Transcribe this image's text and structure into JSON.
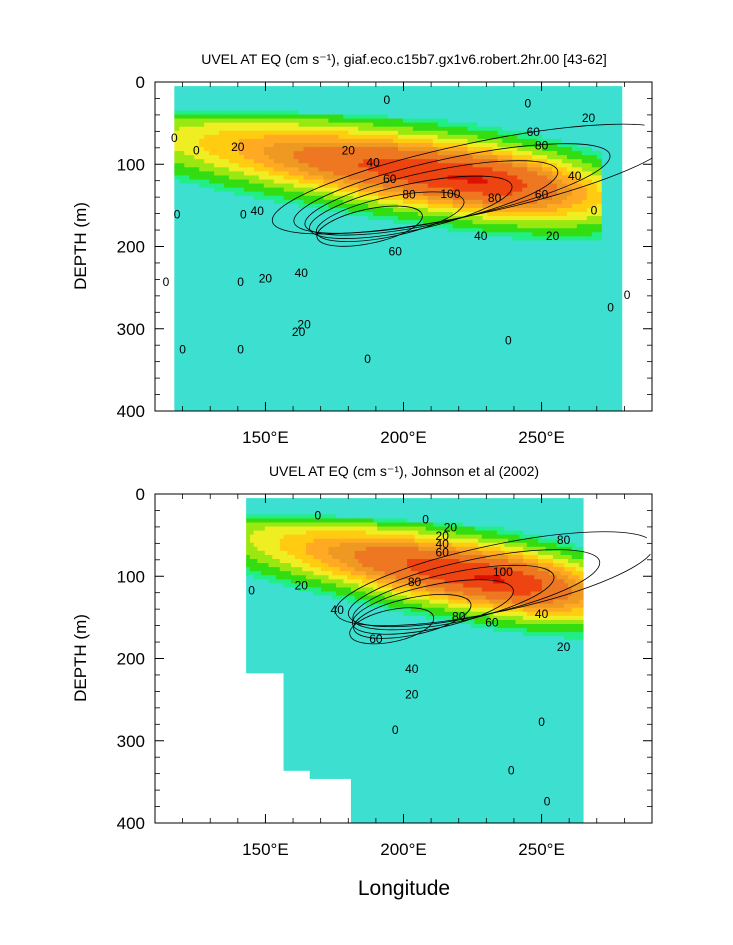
{
  "colors": {
    "bands": [
      "#3de0d0",
      "#22ee88",
      "#33dd11",
      "#99e811",
      "#eeee22",
      "#ffcc11",
      "#ffaa22",
      "#ee9922",
      "#ee7722",
      "#ee4411",
      "#dd1100",
      "#bb1100"
    ],
    "contour_line": "#000000",
    "frame": "#000000"
  },
  "chart_data": [
    {
      "type": "heatmap",
      "title": "UVEL AT EQ (cm s⁻¹), giaf.eco.c15b7.gx1v6.robert.2hr.00 [43-62]",
      "xlabel": "",
      "ylabel": "DEPTH (m)",
      "xlim": [
        110,
        290
      ],
      "ylim": [
        400,
        0
      ],
      "x_ticks": [
        150,
        200,
        250
      ],
      "x_tick_labels": [
        "150°E",
        "200°E",
        "250°E"
      ],
      "y_ticks": [
        0,
        100,
        200,
        300,
        400
      ],
      "y_tick_labels": [
        "0",
        "100",
        "200",
        "300",
        "400"
      ],
      "contour_interval": 10,
      "data_extent": {
        "lon": [
          117,
          279
        ],
        "depth": [
          5,
          400
        ]
      },
      "core": {
        "lon": 225,
        "depth": 118,
        "max_value": 110
      },
      "contour_labels": [
        {
          "text": "0",
          "lon": 194,
          "depth": 23
        },
        {
          "text": "0",
          "lon": 245,
          "depth": 27
        },
        {
          "text": "60",
          "lon": 247,
          "depth": 62
        },
        {
          "text": "80",
          "lon": 250,
          "depth": 78
        },
        {
          "text": "20",
          "lon": 267,
          "depth": 45
        },
        {
          "text": "40",
          "lon": 262,
          "depth": 115
        },
        {
          "text": "20",
          "lon": 180,
          "depth": 84
        },
        {
          "text": "40",
          "lon": 189,
          "depth": 99
        },
        {
          "text": "60",
          "lon": 195,
          "depth": 119
        },
        {
          "text": "80",
          "lon": 202,
          "depth": 138
        },
        {
          "text": "100",
          "lon": 217,
          "depth": 137
        },
        {
          "text": "80",
          "lon": 233,
          "depth": 142
        },
        {
          "text": "60",
          "lon": 250,
          "depth": 138
        },
        {
          "text": "40",
          "lon": 228,
          "depth": 188
        },
        {
          "text": "20",
          "lon": 254,
          "depth": 188
        },
        {
          "text": "60",
          "lon": 197,
          "depth": 207
        },
        {
          "text": "40",
          "lon": 163,
          "depth": 233
        },
        {
          "text": "20",
          "lon": 164,
          "depth": 296
        },
        {
          "text": "0",
          "lon": 117,
          "depth": 69
        },
        {
          "text": "0",
          "lon": 125,
          "depth": 84
        },
        {
          "text": "20",
          "lon": 140,
          "depth": 80
        },
        {
          "text": "0",
          "lon": 118,
          "depth": 162
        },
        {
          "text": "0",
          "lon": 142,
          "depth": 162
        },
        {
          "text": "40",
          "lon": 147,
          "depth": 158
        },
        {
          "text": "20",
          "lon": 150,
          "depth": 240
        },
        {
          "text": "0",
          "lon": 114,
          "depth": 244
        },
        {
          "text": "0",
          "lon": 141,
          "depth": 244
        },
        {
          "text": "0",
          "lon": 120,
          "depth": 326
        },
        {
          "text": "0",
          "lon": 141,
          "depth": 326
        },
        {
          "text": "20",
          "lon": 162,
          "depth": 305
        },
        {
          "text": "0",
          "lon": 187,
          "depth": 338
        },
        {
          "text": "0",
          "lon": 238,
          "depth": 315
        },
        {
          "text": "0",
          "lon": 269,
          "depth": 157
        },
        {
          "text": "0",
          "lon": 275,
          "depth": 275
        },
        {
          "text": "0",
          "lon": 281,
          "depth": 260
        }
      ]
    },
    {
      "type": "heatmap",
      "title": "UVEL AT EQ (cm s⁻¹), Johnson et al (2002)",
      "xlabel": "Longitude",
      "ylabel": "DEPTH (m)",
      "xlim": [
        110,
        290
      ],
      "ylim": [
        400,
        0
      ],
      "x_ticks": [
        150,
        200,
        250
      ],
      "x_tick_labels": [
        "150°E",
        "200°E",
        "250°E"
      ],
      "y_ticks": [
        0,
        100,
        200,
        300,
        400
      ],
      "y_tick_labels": [
        "0",
        "100",
        "200",
        "300",
        "400"
      ],
      "contour_interval": 10,
      "data_extent": {
        "lon": [
          143,
          265
        ],
        "depth": [
          5,
          400
        ]
      },
      "core": {
        "lon": 233,
        "depth": 103,
        "max_value": 110
      },
      "contour_labels": [
        {
          "text": "0",
          "lon": 169,
          "depth": 27
        },
        {
          "text": "0",
          "lon": 208,
          "depth": 32
        },
        {
          "text": "20",
          "lon": 217,
          "depth": 42
        },
        {
          "text": "20",
          "lon": 214,
          "depth": 52
        },
        {
          "text": "40",
          "lon": 214,
          "depth": 62
        },
        {
          "text": "60",
          "lon": 214,
          "depth": 72
        },
        {
          "text": "0",
          "lon": 145,
          "depth": 118
        },
        {
          "text": "20",
          "lon": 163,
          "depth": 112
        },
        {
          "text": "80",
          "lon": 258,
          "depth": 57
        },
        {
          "text": "100",
          "lon": 236,
          "depth": 96
        },
        {
          "text": "80",
          "lon": 204,
          "depth": 108
        },
        {
          "text": "40",
          "lon": 176,
          "depth": 142
        },
        {
          "text": "60",
          "lon": 190,
          "depth": 177
        },
        {
          "text": "80",
          "lon": 220,
          "depth": 150
        },
        {
          "text": "60",
          "lon": 232,
          "depth": 157
        },
        {
          "text": "40",
          "lon": 250,
          "depth": 147
        },
        {
          "text": "20",
          "lon": 258,
          "depth": 187
        },
        {
          "text": "40",
          "lon": 203,
          "depth": 214
        },
        {
          "text": "20",
          "lon": 203,
          "depth": 245
        },
        {
          "text": "0",
          "lon": 197,
          "depth": 288
        },
        {
          "text": "0",
          "lon": 250,
          "depth": 278
        },
        {
          "text": "0",
          "lon": 239,
          "depth": 337
        },
        {
          "text": "0",
          "lon": 252,
          "depth": 375
        }
      ]
    }
  ]
}
